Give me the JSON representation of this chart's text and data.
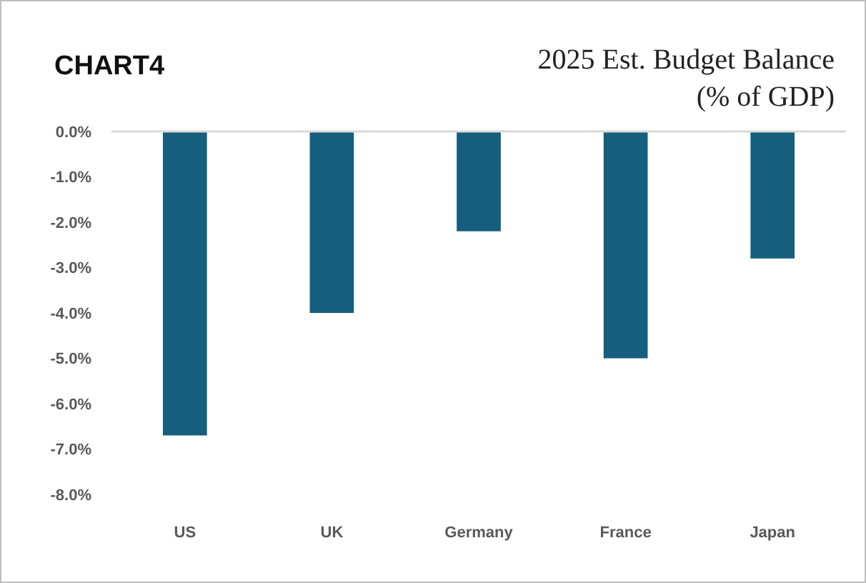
{
  "chart_data": {
    "type": "bar",
    "title": "2025 Est. Budget Balance",
    "subtitle": "(% of GDP)",
    "annotations": [
      "CHART4"
    ],
    "categories": [
      "US",
      "UK",
      "Germany",
      "France",
      "Japan"
    ],
    "values": [
      -6.7,
      -4.0,
      -2.2,
      -5.0,
      -2.8
    ],
    "color": "#165e7d",
    "ylim": [
      -8,
      0
    ],
    "yticks": [
      {
        "value": 0,
        "label": "0.0%"
      },
      {
        "value": -1,
        "label": "-1.0%"
      },
      {
        "value": -2,
        "label": "-2.0%"
      },
      {
        "value": -3,
        "label": "-3.0%"
      },
      {
        "value": -4,
        "label": "-4.0%"
      },
      {
        "value": -5,
        "label": "-5.0%"
      },
      {
        "value": -6,
        "label": "-6.0%"
      },
      {
        "value": -7,
        "label": "-7.0%"
      },
      {
        "value": -8,
        "label": "-8.0%"
      }
    ],
    "grid": false
  }
}
